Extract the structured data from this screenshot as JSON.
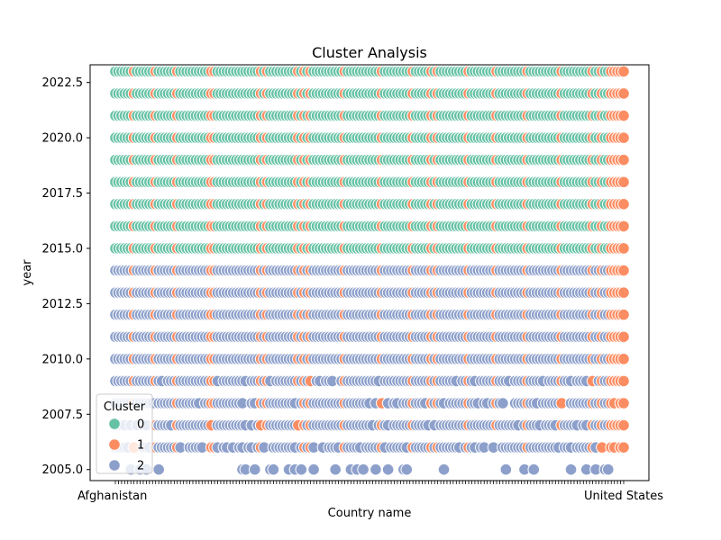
{
  "chart_data": {
    "type": "scatter",
    "title": "Cluster Analysis",
    "xlabel": "Country name",
    "ylabel": "year",
    "ylim": [
      2004.5,
      2023.3
    ],
    "y_ticks": [
      "2005.0",
      "2007.5",
      "2010.0",
      "2012.5",
      "2015.0",
      "2017.5",
      "2020.0",
      "2022.5"
    ],
    "y_tick_values": [
      2005.0,
      2007.5,
      2010.0,
      2012.5,
      2015.0,
      2017.5,
      2020.0,
      2022.5
    ],
    "x_tick_first": "Afghanistan",
    "x_tick_last": "United States",
    "x_category_count": 165,
    "grid": false,
    "legend": {
      "title": "Cluster",
      "placement": "lower-left",
      "entries": [
        {
          "label": "0",
          "color": "#66c2a5"
        },
        {
          "label": "1",
          "color": "#fc8d62"
        },
        {
          "label": "2",
          "color": "#8da0cb"
        }
      ]
    },
    "year_clusters": [
      {
        "year": 2005,
        "cluster": "2"
      },
      {
        "year": 2006,
        "cluster": "2"
      },
      {
        "year": 2007,
        "cluster": "2"
      },
      {
        "year": 2008,
        "cluster": "2"
      },
      {
        "year": 2009,
        "cluster": "2"
      },
      {
        "year": 2010,
        "cluster": "2"
      },
      {
        "year": 2011,
        "cluster": "2"
      },
      {
        "year": 2012,
        "cluster": "2"
      },
      {
        "year": 2013,
        "cluster": "2"
      },
      {
        "year": 2014,
        "cluster": "2"
      },
      {
        "year": 2015,
        "cluster": "0"
      },
      {
        "year": 2016,
        "cluster": "0"
      },
      {
        "year": 2017,
        "cluster": "0"
      },
      {
        "year": 2018,
        "cluster": "0"
      },
      {
        "year": 2019,
        "cluster": "0"
      },
      {
        "year": 2020,
        "cluster": "0"
      },
      {
        "year": 2021,
        "cluster": "0"
      },
      {
        "year": 2022,
        "cluster": "0"
      },
      {
        "year": 2023,
        "cluster": "0"
      }
    ],
    "high_income_cluster": "1"
  }
}
